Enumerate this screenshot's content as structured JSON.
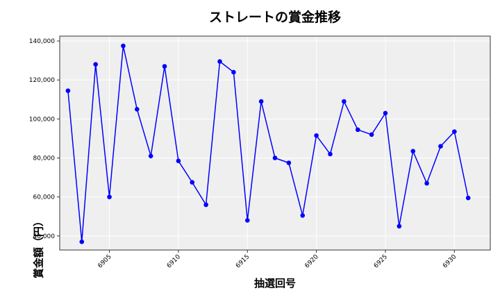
{
  "chart_data": {
    "type": "line",
    "title": "ストレートの賞金推移",
    "xlabel": "抽選回号",
    "ylabel": "賞金額（円）",
    "x": [
      6902,
      6903,
      6904,
      6905,
      6906,
      6907,
      6908,
      6909,
      6910,
      6911,
      6912,
      6913,
      6914,
      6915,
      6916,
      6917,
      6918,
      6919,
      6920,
      6921,
      6922,
      6923,
      6924,
      6925,
      6926,
      6927,
      6928,
      6929,
      6930,
      6931
    ],
    "series": [
      {
        "name": "ストレート",
        "color": "#0000ff",
        "marker": "circle",
        "values": [
          114500,
          37000,
          128000,
          60000,
          137500,
          105000,
          81000,
          127000,
          78500,
          67500,
          56000,
          129500,
          124000,
          48000,
          109000,
          80000,
          77500,
          50500,
          91500,
          82000,
          109000,
          94500,
          92000,
          103000,
          45000,
          83500,
          67000,
          86000,
          93500,
          59500
        ]
      }
    ],
    "xticks": [
      6905,
      6910,
      6915,
      6920,
      6925,
      6930
    ],
    "yticks": [
      40000,
      60000,
      80000,
      100000,
      120000,
      140000
    ],
    "ytick_labels": [
      "40,000",
      "60,000",
      "80,000",
      "100,000",
      "120,000",
      "140,000"
    ],
    "xlim": [
      6901.4,
      6932.6
    ],
    "ylim": [
      32800,
      142500
    ],
    "grid": true,
    "legend": null,
    "background": "#efefef"
  }
}
